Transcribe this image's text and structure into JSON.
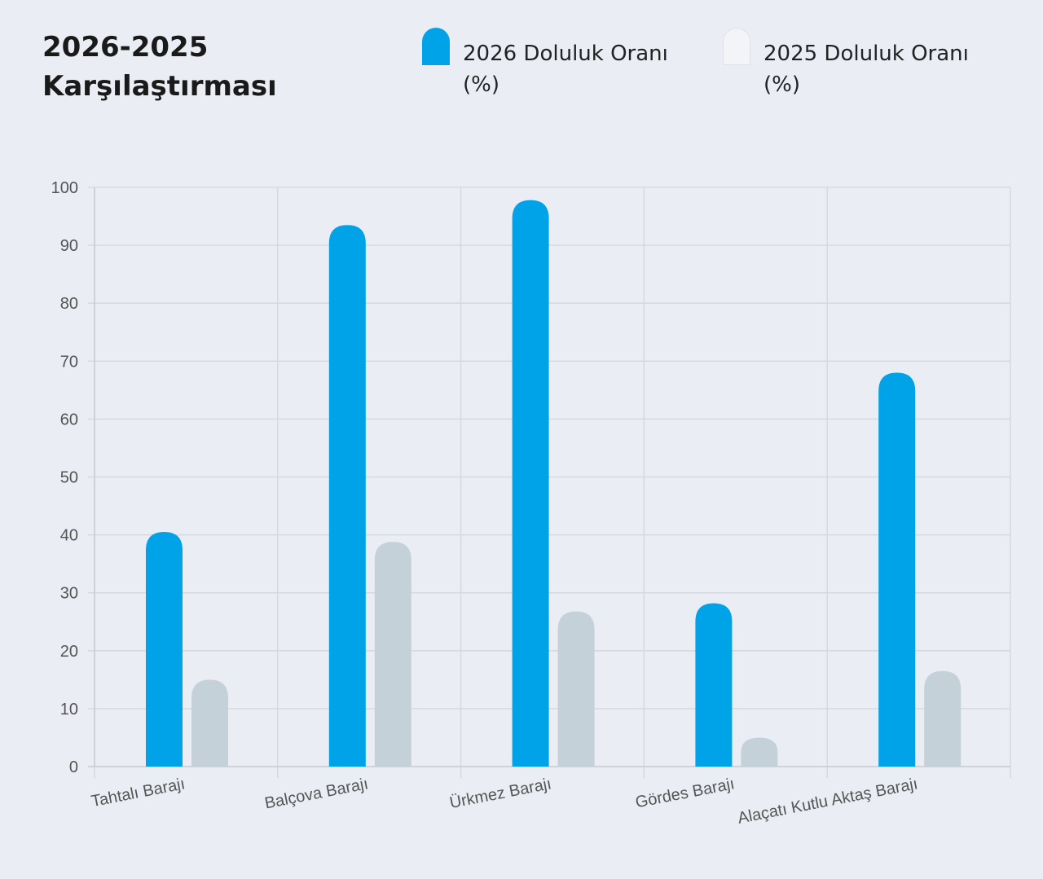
{
  "chart_data": {
    "type": "bar",
    "title": "2026-2025 Karşılaştırması",
    "categories": [
      "Tahtalı Barajı",
      "Balçova Barajı",
      "Ürkmez Barajı",
      "Gördes Barajı",
      "Alaçatı Kutlu Aktaş Barajı"
    ],
    "series": [
      {
        "name": "2026 Doluluk Oranı (%)",
        "color": "#00a2e8",
        "values": [
          40.5,
          93.5,
          97.8,
          28.2,
          68
        ]
      },
      {
        "name": "2025 Doluluk Oranı (%)",
        "color": "#c5d1d8",
        "values": [
          15,
          38.8,
          26.8,
          5,
          16.5
        ]
      }
    ],
    "ylim": [
      0,
      100
    ],
    "yticks": [
      0,
      10,
      20,
      30,
      40,
      50,
      60,
      70,
      80,
      90,
      100
    ],
    "grid": true,
    "legend": "top",
    "xlabel": "",
    "ylabel": ""
  }
}
